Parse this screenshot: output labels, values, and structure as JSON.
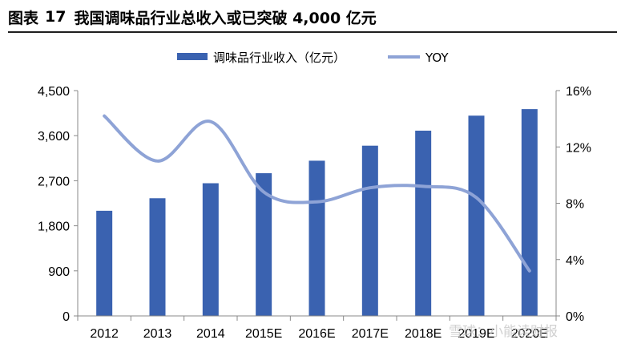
{
  "figure": {
    "label": "图表",
    "number": "17",
    "title": "我国调味品行业总收入或已突破 4,000 亿元"
  },
  "watermark": "雪球：小能读财报",
  "chart_data": {
    "type": "bar+line",
    "categories": [
      "2012",
      "2013",
      "2014",
      "2015E",
      "2016E",
      "2017E",
      "2018E",
      "2019E",
      "2020E"
    ],
    "series": [
      {
        "name": "调味品行业收入（亿元）",
        "type": "bar",
        "axis": "left",
        "values": [
          2100,
          2350,
          2650,
          2850,
          3100,
          3400,
          3700,
          4000,
          4130
        ]
      },
      {
        "name": "YOY",
        "type": "line",
        "axis": "right",
        "values": [
          0.142,
          0.11,
          0.138,
          0.088,
          0.081,
          0.091,
          0.092,
          0.084,
          0.032
        ]
      }
    ],
    "left_axis": {
      "ylim": [
        0,
        4500
      ],
      "ticks": [
        "0",
        "900",
        "1,800",
        "2,700",
        "3,600",
        "4,500"
      ],
      "tick_values": [
        0,
        900,
        1800,
        2700,
        3600,
        4500
      ]
    },
    "right_axis": {
      "ylim": [
        0,
        0.16
      ],
      "ticks": [
        "0%",
        "4%",
        "8%",
        "12%",
        "16%"
      ],
      "tick_values": [
        0,
        0.04,
        0.08,
        0.12,
        0.16
      ]
    },
    "grid": false,
    "legend_position": "top-center",
    "colors": {
      "bar": "#3a62b0",
      "line": "#8ea3d6",
      "axis": "#888888"
    }
  }
}
